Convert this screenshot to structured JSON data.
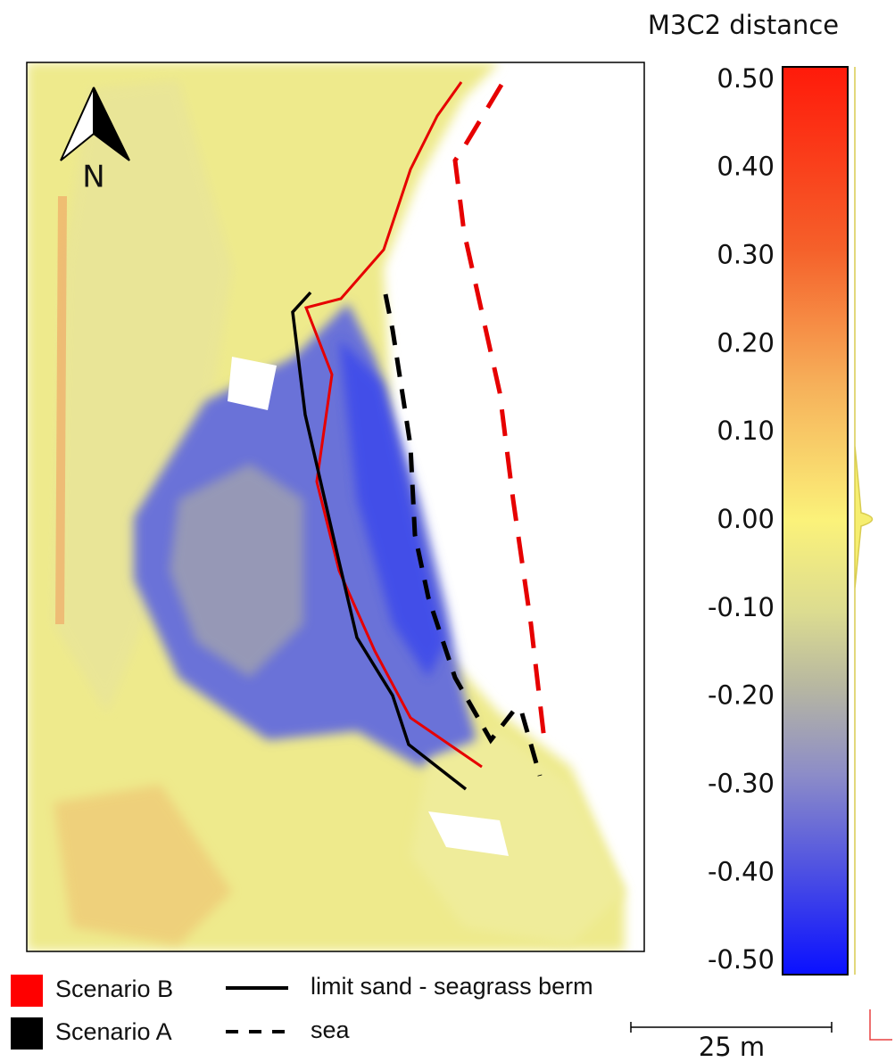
{
  "title": "M3C2 distance",
  "map": {
    "north_label": "N"
  },
  "colorbar": {
    "vlim": [
      -0.515,
      0.515
    ],
    "ticks": [
      {
        "value": 0.5,
        "label": "0.50"
      },
      {
        "value": 0.4,
        "label": "0.40"
      },
      {
        "value": 0.3,
        "label": "0.30"
      },
      {
        "value": 0.2,
        "label": "0.20"
      },
      {
        "value": 0.1,
        "label": "0.10"
      },
      {
        "value": 0,
        "label": "0.00"
      },
      {
        "value": -0.1,
        "label": "-0.10"
      },
      {
        "value": -0.2,
        "label": "-0.20"
      },
      {
        "value": -0.3,
        "label": "-0.30"
      },
      {
        "value": -0.4,
        "label": "-0.40"
      },
      {
        "value": -0.5,
        "label": "-0.50"
      }
    ]
  },
  "legend": [
    {
      "label": "Scenario B"
    },
    {
      "label": "Scenario A"
    },
    {
      "label": "limit sand - seagrass berm"
    },
    {
      "label": "sea"
    }
  ],
  "scale_bar": {
    "label": "25 m"
  }
}
